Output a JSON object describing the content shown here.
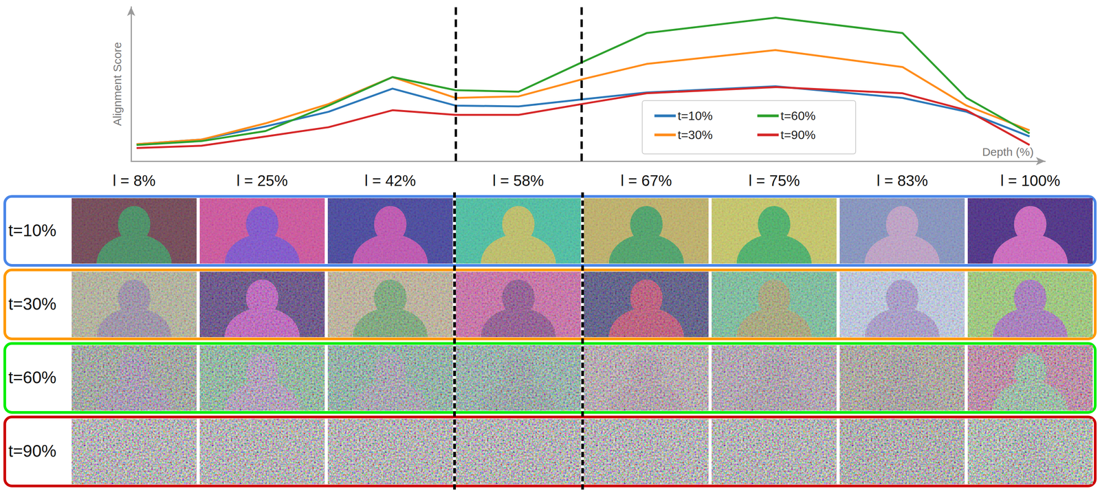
{
  "chart_data": {
    "type": "line",
    "y_label": "Alignment Score",
    "x_label": "Depth (%)",
    "x": [
      0.6,
      7.7,
      14.7,
      21.6,
      28.6,
      35.5,
      42.4,
      49.3,
      56.4,
      70.5,
      84.4,
      91.4,
      98.3
    ],
    "series": [
      {
        "name": "t=10%",
        "color": "#2b78b9",
        "values": [
          11,
          14,
          22.5,
          32,
          47,
          36,
          35.5,
          40,
          44.5,
          48.5,
          41,
          32,
          16
        ]
      },
      {
        "name": "t=30%",
        "color": "#ff8c1a",
        "values": [
          11,
          14,
          24.5,
          37,
          54.5,
          41,
          42,
          53,
          63,
          72,
          61,
          36,
          20
        ]
      },
      {
        "name": "t=60%",
        "color": "#2ca02c",
        "values": [
          10.5,
          13,
          19.5,
          36,
          54.5,
          46,
          45,
          64,
          83,
          93,
          83,
          41,
          18
        ]
      },
      {
        "name": "t=90%",
        "color": "#d62728",
        "values": [
          8.5,
          10,
          16,
          22,
          33,
          30,
          30,
          37,
          44,
          48,
          44,
          33,
          10.5
        ]
      }
    ],
    "xlim": [
      0,
      100
    ],
    "ylim": [
      0,
      100
    ],
    "tick_labels": false,
    "grid": false,
    "legend": "lower right",
    "dividers": [
      35.5,
      49.3
    ]
  },
  "image_grid": {
    "columns": [
      "l = 8%",
      "l = 25%",
      "l = 42%",
      "l = 58%",
      "l = 67%",
      "l = 75%",
      "l = 83%",
      "l = 100%"
    ],
    "rows": [
      {
        "label": "t=10%",
        "color": "#4a86e8"
      },
      {
        "label": "t=30%",
        "color": "#ff9900"
      },
      {
        "label": "t=60%",
        "color": "#00ee00"
      },
      {
        "label": "t=90%",
        "color": "#cc0000"
      }
    ]
  }
}
